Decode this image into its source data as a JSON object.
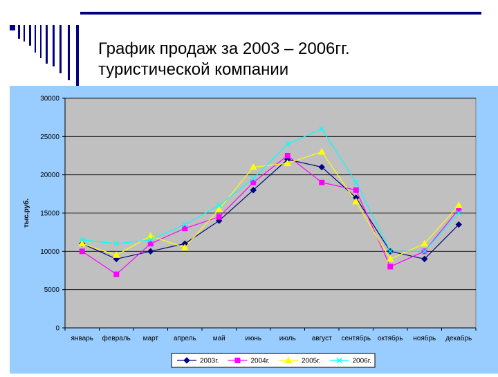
{
  "slide": {
    "title_line1": "График продаж за 2003 – 2006гг.",
    "title_line2": "туристической компании",
    "accent_color": "#000080"
  },
  "chart_data": {
    "type": "line",
    "ylabel": "тыс.руб.",
    "xlabel": "",
    "ylim": [
      0,
      30000
    ],
    "yticks": [
      0,
      5000,
      10000,
      15000,
      20000,
      25000,
      30000
    ],
    "grid": true,
    "legend_position": "bottom",
    "categories": [
      "январь",
      "февраль",
      "март",
      "апрель",
      "май",
      "июнь",
      "июль",
      "август",
      "сентябрь",
      "октябрь",
      "ноябрь",
      "декабрь"
    ],
    "series": [
      {
        "name": "2003г.",
        "color": "#000080",
        "marker": "diamond",
        "values": [
          11000,
          9000,
          10000,
          11000,
          14000,
          18000,
          22000,
          21000,
          17000,
          10000,
          9000,
          13500
        ]
      },
      {
        "name": "2004г.",
        "color": "#ff00ff",
        "marker": "square",
        "values": [
          10000,
          7000,
          11000,
          13000,
          14500,
          19000,
          22500,
          19000,
          18000,
          8000,
          10000,
          15500
        ]
      },
      {
        "name": "2005г.",
        "color": "#ffff00",
        "marker": "triangle",
        "values": [
          11000,
          9500,
          12000,
          10500,
          15500,
          21000,
          21500,
          23000,
          16500,
          9000,
          11000,
          16000
        ]
      },
      {
        "name": "2006г.",
        "color": "#00ffff",
        "marker": "x",
        "values": [
          11500,
          11000,
          11500,
          13500,
          16000,
          19500,
          24000,
          26000,
          19000,
          10000,
          10000,
          15000
        ]
      }
    ]
  }
}
